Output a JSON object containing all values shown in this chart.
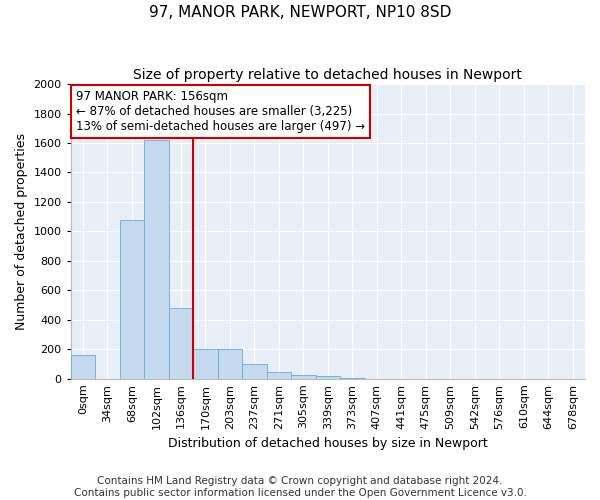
{
  "title": "97, MANOR PARK, NEWPORT, NP10 8SD",
  "subtitle": "Size of property relative to detached houses in Newport",
  "xlabel": "Distribution of detached houses by size in Newport",
  "ylabel": "Number of detached properties",
  "categories": [
    "0sqm",
    "34sqm",
    "68sqm",
    "102sqm",
    "136sqm",
    "170sqm",
    "203sqm",
    "237sqm",
    "271sqm",
    "305sqm",
    "339sqm",
    "373sqm",
    "407sqm",
    "441sqm",
    "475sqm",
    "509sqm",
    "542sqm",
    "576sqm",
    "610sqm",
    "644sqm",
    "678sqm"
  ],
  "values": [
    160,
    0,
    1080,
    1620,
    480,
    200,
    200,
    100,
    45,
    28,
    18,
    5,
    0,
    0,
    0,
    0,
    0,
    0,
    0,
    0,
    0
  ],
  "bar_color": "#c5d9ef",
  "bar_edgecolor": "#6aaad4",
  "vline_x": 4.5,
  "vline_color": "#cc0000",
  "annotation_text": "97 MANOR PARK: 156sqm\n← 87% of detached houses are smaller (3,225)\n13% of semi-detached houses are larger (497) →",
  "annotation_box_color": "#ffffff",
  "annotation_box_edgecolor": "#cc0000",
  "ylim": [
    0,
    2000
  ],
  "yticks": [
    0,
    200,
    400,
    600,
    800,
    1000,
    1200,
    1400,
    1600,
    1800,
    2000
  ],
  "plot_bg": "#e8eef7",
  "fig_bg": "#ffffff",
  "footer_text": "Contains HM Land Registry data © Crown copyright and database right 2024.\nContains public sector information licensed under the Open Government Licence v3.0.",
  "title_fontsize": 11,
  "subtitle_fontsize": 10,
  "xlabel_fontsize": 9,
  "ylabel_fontsize": 9,
  "tick_fontsize": 8,
  "annotation_fontsize": 8.5,
  "footer_fontsize": 7.5
}
